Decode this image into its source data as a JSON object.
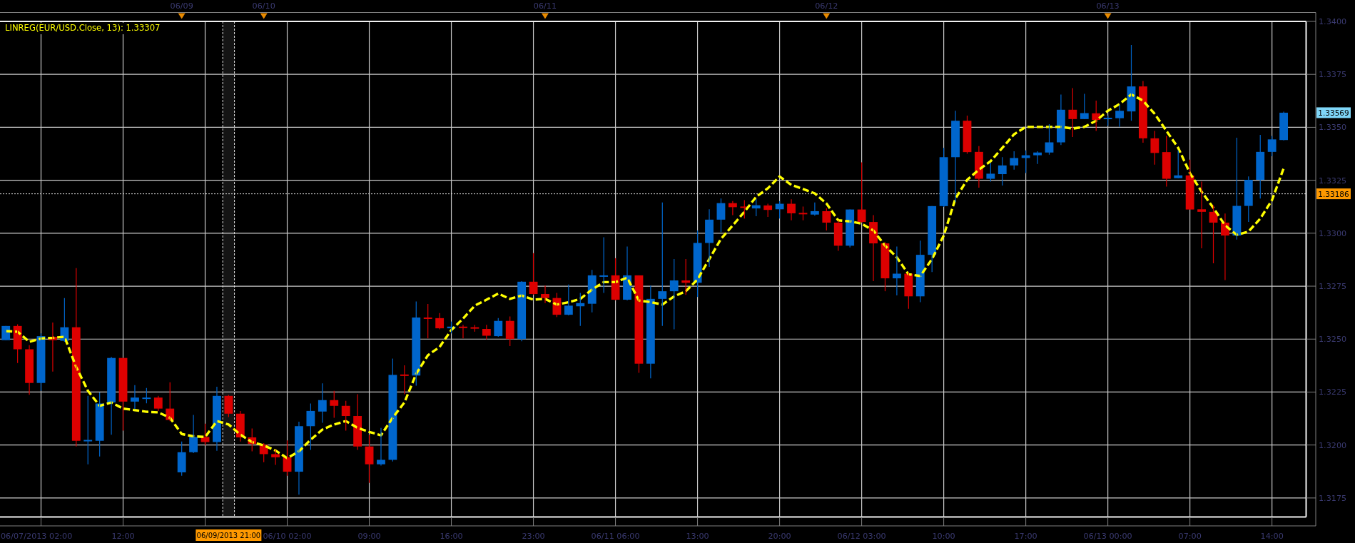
{
  "chart_data": {
    "type": "candlestick",
    "categories": [
      null,
      null,
      null,
      null,
      null,
      null,
      null,
      null,
      null,
      null,
      "12:00",
      null,
      null,
      null,
      null,
      null,
      null,
      null,
      null,
      null,
      null,
      null,
      null,
      null,
      "06/10 02:00",
      null,
      null,
      null,
      null,
      null,
      null,
      "09:00",
      null,
      null,
      null,
      null,
      null,
      null,
      "16:00",
      null,
      null,
      null,
      null,
      null,
      null,
      "23:00",
      null,
      null,
      null,
      null,
      null,
      null,
      "06/11 06:00",
      null,
      null,
      null,
      null,
      null,
      null,
      "13:00",
      null,
      null,
      null,
      null,
      null,
      null,
      "20:00",
      null,
      null,
      null,
      null,
      null,
      null,
      "06/12 03:00",
      null,
      null,
      null,
      null,
      null,
      null,
      "10:00",
      null,
      null,
      null,
      null,
      null,
      null,
      "17:00",
      null,
      null,
      null,
      null,
      null,
      null,
      "06/13 00:00",
      null,
      null,
      null,
      null,
      null,
      null,
      "07:00",
      null,
      null,
      null,
      null,
      null,
      null,
      "14:00",
      null
    ],
    "ohlc": [
      [
        1.32495,
        1.32562,
        1.32495,
        1.32562
      ],
      [
        1.32562,
        1.3257,
        1.32387,
        1.32452
      ],
      [
        1.32452,
        1.32471,
        1.32237,
        1.32293
      ],
      [
        1.32293,
        1.32527,
        1.32256,
        1.32514
      ],
      [
        1.32511,
        1.32578,
        1.32347,
        1.32495
      ],
      [
        1.32492,
        1.32694,
        1.32487,
        1.32556
      ],
      [
        1.32556,
        1.32835,
        1.31993,
        1.3202
      ],
      [
        1.3202,
        1.32232,
        1.31909,
        1.32024
      ],
      [
        1.3202,
        1.32248,
        1.31946,
        1.32196
      ],
      [
        1.32201,
        1.32416,
        1.32049,
        1.32411
      ],
      [
        1.32411,
        1.32411,
        1.32068,
        1.32205
      ],
      [
        1.32205,
        1.32283,
        1.32169,
        1.32224
      ],
      [
        1.32221,
        1.32269,
        1.32197,
        1.32224
      ],
      [
        1.32224,
        1.32232,
        1.32161,
        1.32172
      ],
      [
        1.32172,
        1.32296,
        1.32113,
        1.32118
      ],
      [
        1.31871,
        1.32017,
        1.31855,
        1.31966
      ],
      [
        1.31966,
        1.32142,
        1.31962,
        1.32038
      ],
      [
        1.32038,
        1.32101,
        1.31998,
        1.32014
      ],
      [
        1.32014,
        1.32275,
        1.31973,
        1.32232
      ],
      [
        1.32232,
        1.32236,
        1.32132,
        1.32148
      ],
      [
        1.32148,
        1.32161,
        1.32017,
        1.32036
      ],
      [
        1.32036,
        1.32078,
        1.3197,
        1.32005
      ],
      [
        1.32001,
        1.32009,
        1.31919,
        1.31957
      ],
      [
        1.31957,
        1.31978,
        1.31906,
        1.31942
      ],
      [
        1.31942,
        1.32022,
        1.31855,
        1.31874
      ],
      [
        1.31874,
        1.3211,
        1.31766,
        1.32089
      ],
      [
        1.32089,
        1.32196,
        1.31977,
        1.32161
      ],
      [
        1.32158,
        1.32291,
        1.32105,
        1.32212
      ],
      [
        1.32212,
        1.32256,
        1.32129,
        1.32185
      ],
      [
        1.32185,
        1.32209,
        1.32068,
        1.32137
      ],
      [
        1.32137,
        1.3224,
        1.31977,
        1.31993
      ],
      [
        1.31993,
        1.32049,
        1.31821,
        1.31909
      ],
      [
        1.31909,
        1.32081,
        1.31903,
        1.3193
      ],
      [
        1.3193,
        1.32408,
        1.31922,
        1.32331
      ],
      [
        1.32333,
        1.32376,
        1.3224,
        1.32328
      ],
      [
        1.32328,
        1.32678,
        1.3228,
        1.32602
      ],
      [
        1.32602,
        1.32666,
        1.32503,
        1.32597
      ],
      [
        1.32599,
        1.32623,
        1.32546,
        1.32551
      ],
      [
        1.32551,
        1.32583,
        1.32527,
        1.32559
      ],
      [
        1.32559,
        1.32567,
        1.32503,
        1.32553
      ],
      [
        1.32556,
        1.32567,
        1.32535,
        1.32551
      ],
      [
        1.32548,
        1.32567,
        1.32498,
        1.32516
      ],
      [
        1.32514,
        1.32599,
        1.32511,
        1.32586
      ],
      [
        1.32586,
        1.32607,
        1.32467,
        1.325
      ],
      [
        1.325,
        1.32774,
        1.3249,
        1.32771
      ],
      [
        1.32771,
        1.32906,
        1.32709,
        1.32713
      ],
      [
        1.32713,
        1.32753,
        1.3267,
        1.32694
      ],
      [
        1.32694,
        1.32718,
        1.32604,
        1.32615
      ],
      [
        1.32615,
        1.32758,
        1.32612,
        1.32658
      ],
      [
        1.32655,
        1.32718,
        1.32562,
        1.3267
      ],
      [
        1.32667,
        1.32827,
        1.32626,
        1.32801
      ],
      [
        1.32798,
        1.32981,
        1.32718,
        1.32801
      ],
      [
        1.32801,
        1.32882,
        1.32683,
        1.32686
      ],
      [
        1.32686,
        1.32937,
        1.32683,
        1.32801
      ],
      [
        1.32801,
        1.32801,
        1.32341,
        1.32384
      ],
      [
        1.32384,
        1.32753,
        1.32315,
        1.3269
      ],
      [
        1.3269,
        1.33145,
        1.32562,
        1.32726
      ],
      [
        1.32726,
        1.32878,
        1.32546,
        1.32777
      ],
      [
        1.32777,
        1.32878,
        1.32709,
        1.32766
      ],
      [
        1.32766,
        1.33013,
        1.32699,
        1.32954
      ],
      [
        1.32954,
        1.33113,
        1.32841,
        1.33064
      ],
      [
        1.33064,
        1.33164,
        1.33005,
        1.33142
      ],
      [
        1.33142,
        1.33152,
        1.33085,
        1.33123
      ],
      [
        1.33126,
        1.33156,
        1.33069,
        1.33123
      ],
      [
        1.33117,
        1.33161,
        1.3308,
        1.33132
      ],
      [
        1.33131,
        1.33139,
        1.33077,
        1.3311
      ],
      [
        1.33113,
        1.33152,
        1.33069,
        1.33139
      ],
      [
        1.33139,
        1.3316,
        1.33061,
        1.33094
      ],
      [
        1.33096,
        1.33126,
        1.33061,
        1.33093
      ],
      [
        1.33088,
        1.33145,
        1.33083,
        1.33104
      ],
      [
        1.33104,
        1.33117,
        1.33013,
        1.3305
      ],
      [
        1.3305,
        1.33061,
        1.32917,
        1.32941
      ],
      [
        1.32941,
        1.33112,
        1.32933,
        1.33112
      ],
      [
        1.33112,
        1.33335,
        1.3305,
        1.33053
      ],
      [
        1.33053,
        1.33085,
        1.32774,
        1.32952
      ],
      [
        1.32952,
        1.32957,
        1.32726,
        1.32787
      ],
      [
        1.32787,
        1.32937,
        1.32706,
        1.32809
      ],
      [
        1.32809,
        1.32814,
        1.32643,
        1.32702
      ],
      [
        1.32702,
        1.32965,
        1.32674,
        1.32898
      ],
      [
        1.32898,
        1.33128,
        1.32817,
        1.33128
      ],
      [
        1.33128,
        1.33403,
        1.33124,
        1.33359
      ],
      [
        1.33359,
        1.33578,
        1.33148,
        1.33531
      ],
      [
        1.33531,
        1.33555,
        1.33375,
        1.33383
      ],
      [
        1.33384,
        1.33411,
        1.33215,
        1.33257
      ],
      [
        1.33257,
        1.33332,
        1.33244,
        1.33281
      ],
      [
        1.33279,
        1.33359,
        1.33225,
        1.3332
      ],
      [
        1.3332,
        1.33387,
        1.333,
        1.33355
      ],
      [
        1.33355,
        1.33391,
        1.33284,
        1.33368
      ],
      [
        1.33368,
        1.33387,
        1.33327,
        1.33381
      ],
      [
        1.33381,
        1.33515,
        1.33371,
        1.33429
      ],
      [
        1.33429,
        1.33655,
        1.33416,
        1.33583
      ],
      [
        1.33583,
        1.33685,
        1.33454,
        1.33539
      ],
      [
        1.33539,
        1.33658,
        1.33539,
        1.33567
      ],
      [
        1.33566,
        1.33626,
        1.33483,
        1.33535
      ],
      [
        1.33542,
        1.33555,
        1.33507,
        1.33545
      ],
      [
        1.33543,
        1.33607,
        1.33502,
        1.33578
      ],
      [
        1.33575,
        1.33889,
        1.33531,
        1.33693
      ],
      [
        1.33693,
        1.33719,
        1.33427,
        1.33448
      ],
      [
        1.33448,
        1.33483,
        1.33324,
        1.33379
      ],
      [
        1.33383,
        1.33459,
        1.3322,
        1.33257
      ],
      [
        1.3326,
        1.33391,
        1.3326,
        1.33273
      ],
      [
        1.33273,
        1.33347,
        1.33112,
        1.33112
      ],
      [
        1.33113,
        1.33244,
        1.32929,
        1.33101
      ],
      [
        1.33101,
        1.33132,
        1.32858,
        1.3305
      ],
      [
        1.3305,
        1.33093,
        1.32779,
        1.32989
      ],
      [
        1.32989,
        1.33451,
        1.3297,
        1.33129
      ],
      [
        1.33129,
        1.33268,
        1.33053,
        1.33252
      ],
      [
        1.33252,
        1.33464,
        1.33164,
        1.33384
      ],
      [
        1.33384,
        1.33459,
        1.33363,
        1.33443
      ],
      [
        1.3344,
        1.33574,
        1.33438,
        1.33569
      ]
    ],
    "colors": [
      "#0066cc",
      "#dd0000",
      "#dd0000",
      "#0066cc",
      "#dd0000",
      "#0066cc",
      "#dd0000",
      "#0066cc",
      "#0066cc",
      "#0066cc",
      "#dd0000",
      "#0066cc",
      "#0066cc",
      "#dd0000",
      "#dd0000",
      "#0066cc",
      "#0066cc",
      "#dd0000",
      "#0066cc",
      "#dd0000",
      "#dd0000",
      "#dd0000",
      "#dd0000",
      "#dd0000",
      "#dd0000",
      "#0066cc",
      "#0066cc",
      "#0066cc",
      "#dd0000",
      "#dd0000",
      "#dd0000",
      "#dd0000",
      "#0066cc",
      "#0066cc",
      "#dd0000",
      "#0066cc",
      "#dd0000",
      "#dd0000",
      "#0066cc",
      "#dd0000",
      "#dd0000",
      "#dd0000",
      "#0066cc",
      "#dd0000",
      "#0066cc",
      "#dd0000",
      "#dd0000",
      "#dd0000",
      "#0066cc",
      "#0066cc",
      "#0066cc",
      "#0066cc",
      "#dd0000",
      "#0066cc",
      "#dd0000",
      "#0066cc",
      "#0066cc",
      "#0066cc",
      "#dd0000",
      "#0066cc",
      "#0066cc",
      "#0066cc",
      "#dd0000",
      "#dd0000",
      "#0066cc",
      "#dd0000",
      "#0066cc",
      "#dd0000",
      "#dd0000",
      "#0066cc",
      "#dd0000",
      "#dd0000",
      "#0066cc",
      "#dd0000",
      "#dd0000",
      "#dd0000",
      "#0066cc",
      "#dd0000",
      "#0066cc",
      "#0066cc",
      "#0066cc",
      "#0066cc",
      "#dd0000",
      "#dd0000",
      "#0066cc",
      "#0066cc",
      "#0066cc",
      "#0066cc",
      "#0066cc",
      "#0066cc",
      "#0066cc",
      "#dd0000",
      "#0066cc",
      "#dd0000",
      "#0066cc",
      "#0066cc",
      "#0066cc",
      "#dd0000",
      "#dd0000",
      "#dd0000",
      "#0066cc",
      "#dd0000",
      "#dd0000",
      "#dd0000",
      "#dd0000",
      "#0066cc",
      "#0066cc",
      "#0066cc",
      "#0066cc",
      "#0066cc"
    ],
    "series": [
      {
        "name": "LINREG(EUR/USD.Close, 13): 1.33307",
        "type": "line",
        "color": "#ffff00",
        "line_style": "dashed",
        "values": [
          1.32538,
          1.32535,
          1.32487,
          1.32503,
          1.32506,
          1.32511,
          1.32368,
          1.32256,
          1.32185,
          1.32201,
          1.32172,
          1.32165,
          1.32157,
          1.32154,
          1.32129,
          1.32052,
          1.32041,
          1.32038,
          1.32113,
          1.32097,
          1.32049,
          1.32014,
          1.31998,
          1.31974,
          1.31938,
          1.3197,
          1.32025,
          1.32073,
          1.32097,
          1.32113,
          1.32081,
          1.32062,
          1.32046,
          1.32129,
          1.32201,
          1.32336,
          1.32424,
          1.32463,
          1.32543,
          1.32597,
          1.32658,
          1.32686,
          1.32715,
          1.3269,
          1.32706,
          1.32686,
          1.3269,
          1.32663,
          1.32674,
          1.3269,
          1.32734,
          1.32769,
          1.32769,
          1.3279,
          1.32682,
          1.32675,
          1.32663,
          1.32702,
          1.32726,
          1.32782,
          1.32878,
          1.32973,
          1.33037,
          1.33101,
          1.33172,
          1.33212,
          1.33268,
          1.33228,
          1.33209,
          1.33188,
          1.3314,
          1.33061,
          1.33056,
          1.33045,
          1.33013,
          1.32941,
          1.32886,
          1.32806,
          1.32798,
          1.32878,
          1.32989,
          1.33164,
          1.33252,
          1.333,
          1.3334,
          1.33403,
          1.33467,
          1.33502,
          1.33502,
          1.33502,
          1.33502,
          1.33494,
          1.33502,
          1.33531,
          1.33578,
          1.3361,
          1.33655,
          1.33626,
          1.33563,
          1.33483,
          1.33403,
          1.33284,
          1.33196,
          1.3312,
          1.33037,
          1.32992,
          1.33008,
          1.33069,
          1.33156,
          1.33307
        ]
      }
    ],
    "x2lim": [
      "2013-06-09T01:30",
      "2013-06-13T16:55"
    ],
    "x2ticks": [
      {
        "value": "2013-06-09T17:00",
        "label": "06/09"
      },
      {
        "value": "2013-06-10T00:00",
        "label": "06/10"
      },
      {
        "value": "2013-06-11T00:00",
        "label": "06/11"
      },
      {
        "value": "2013-06-12T00:00",
        "label": "06/12"
      },
      {
        "value": "2013-06-13T00:00",
        "label": "06/13"
      }
    ],
    "ylim": [
      1.3166,
      1.34
    ],
    "yticks": [
      {
        "value": 1.34,
        "label": "1.3400"
      },
      {
        "value": 1.3375,
        "label": "1.3375"
      },
      {
        "value": 1.335,
        "label": "1.3350"
      },
      {
        "value": 1.3325,
        "label": "1.3325"
      },
      {
        "value": 1.33,
        "label": "1.3300"
      },
      {
        "value": 1.3275,
        "label": "1.3275"
      },
      {
        "value": 1.325,
        "label": "1.3250"
      },
      {
        "value": 1.3225,
        "label": "1.3225"
      },
      {
        "value": 1.32,
        "label": "1.3200"
      },
      {
        "value": 1.3175,
        "label": "1.3175"
      }
    ],
    "grid": true,
    "ref_lines": [
      {
        "axis": "y",
        "value": 1.33186,
        "label": "1.33186",
        "line_style": "dotted"
      }
    ],
    "bands": [
      {
        "axis": "x2",
        "from": "2013-06-09T20:30",
        "to": "2013-06-09T21:30",
        "label": "06/09/2013 21:00"
      }
    ],
    "annotations": [
      "06/07/2013 02:00",
      "1.33569"
    ]
  }
}
